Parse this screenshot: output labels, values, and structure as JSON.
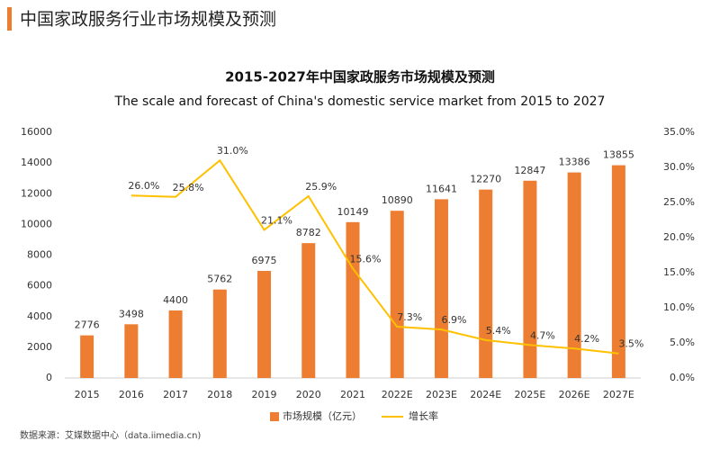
{
  "header": {
    "title": "中国家政服务行业市场规模及预测",
    "source": "数据来源：艾媒数据中心（data.iimedia.cn)"
  },
  "chart_data": {
    "type": "combo",
    "title": "2015-2027年中国家政服务市场规模及预测",
    "subtitle": "The scale and forecast of China's domestic service market from 2015 to 2027",
    "categories": [
      "2015",
      "2016",
      "2017",
      "2018",
      "2019",
      "2020",
      "2021",
      "2022E",
      "2023E",
      "2024E",
      "2025E",
      "2026E",
      "2027E"
    ],
    "series": [
      {
        "name": "市场规模（亿元）",
        "type": "bar",
        "color": "#ed7d31",
        "axis": "y",
        "values": [
          2776,
          3498,
          4400,
          5762,
          6975,
          8782,
          10149,
          10890,
          11641,
          12270,
          12847,
          13386,
          13855
        ]
      },
      {
        "name": "增长率",
        "type": "line",
        "color": "#ffc000",
        "axis": "y2",
        "values": [
          null,
          26.0,
          25.8,
          31.0,
          21.1,
          25.9,
          15.6,
          7.3,
          6.9,
          5.4,
          4.7,
          4.2,
          3.5
        ],
        "value_labels": [
          null,
          "26.0%",
          "25.8%",
          "31.0%",
          "21.1%",
          "25.9%",
          "15.6%",
          "7.3%",
          "6.9%",
          "5.4%",
          "4.7%",
          "4.2%",
          "3.5%"
        ]
      }
    ],
    "ylim": [
      0,
      16000
    ],
    "yticks": [
      0,
      2000,
      4000,
      6000,
      8000,
      10000,
      12000,
      14000,
      16000
    ],
    "y2lim": [
      0,
      35
    ],
    "y2ticks": [
      {
        "value": 0,
        "label": "0.0%"
      },
      {
        "value": 5,
        "label": "5.0%"
      },
      {
        "value": 10,
        "label": "10.0%"
      },
      {
        "value": 15,
        "label": "15.0%"
      },
      {
        "value": 20,
        "label": "20.0%"
      },
      {
        "value": 25,
        "label": "25.0%"
      },
      {
        "value": 30,
        "label": "30.0%"
      },
      {
        "value": 35,
        "label": "35.0%"
      }
    ],
    "legend": "bottom"
  }
}
